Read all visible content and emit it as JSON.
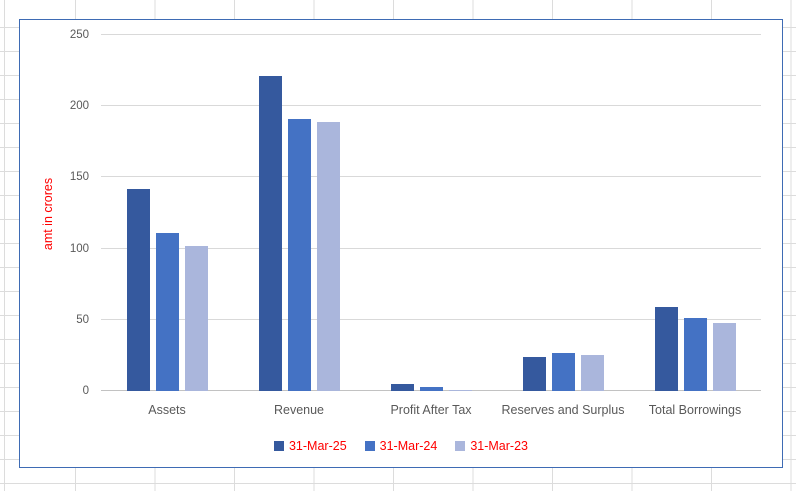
{
  "chart_data": {
    "type": "bar",
    "title": "",
    "categories": [
      "Assets",
      "Revenue",
      "Profit After Tax",
      "Reserves and Surplus",
      "Total Borrowings"
    ],
    "series": [
      {
        "name": "31-Mar-25",
        "color": "#35599e",
        "values": [
          142,
          221,
          5,
          24,
          59
        ]
      },
      {
        "name": "31-Mar-24",
        "color": "#4472c4",
        "values": [
          111,
          191,
          3,
          27,
          51
        ]
      },
      {
        "name": "31-Mar-23",
        "color": "#aab6dc",
        "values": [
          102,
          189,
          1,
          25,
          48
        ]
      }
    ],
    "xlabel": "",
    "ylabel": "amt in crores",
    "ylim": [
      0,
      250
    ],
    "yticks": [
      0,
      50,
      100,
      150,
      200,
      250
    ],
    "grid": "horizontal",
    "legend_position": "bottom"
  },
  "colors": {
    "axis_text": "#595959",
    "category_text": "#595959",
    "red_text": "#ff0000",
    "chart_border": "#3e6bb4",
    "plot_gridline": "#d9d9d9",
    "sheet_gridline": "#dcdcdc"
  }
}
